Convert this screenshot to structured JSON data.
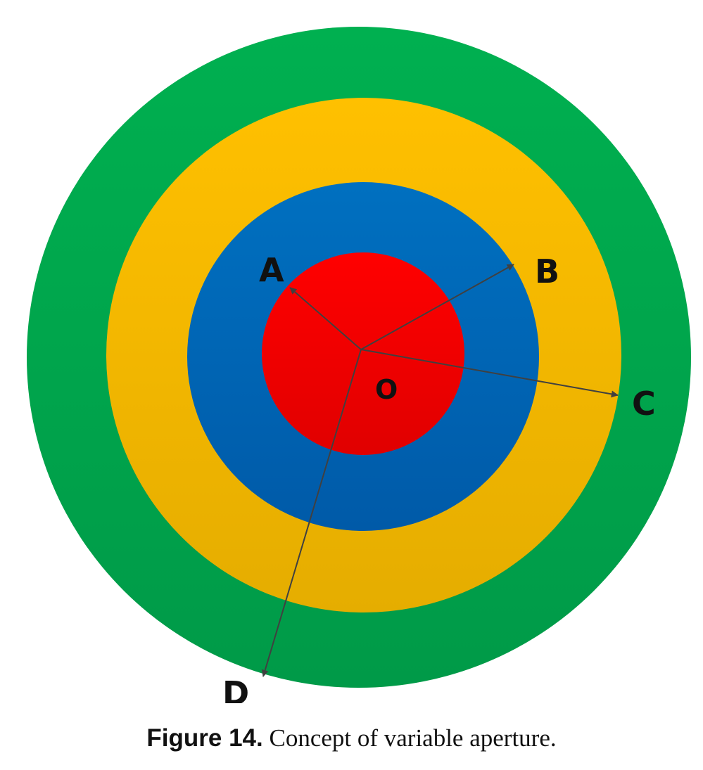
{
  "figure": {
    "label": "Figure 14.",
    "caption_text": " Concept of variable aperture."
  },
  "diagram": {
    "center_label": "O",
    "point_labels": {
      "a": "A",
      "b": "B",
      "c": "C",
      "d": "D"
    },
    "colors": {
      "outer_ring": "#00A650",
      "third_ring": "#F5B800",
      "second_ring": "#0066B8",
      "inner_disc": "#EE0000",
      "arrow": "#404040"
    }
  }
}
